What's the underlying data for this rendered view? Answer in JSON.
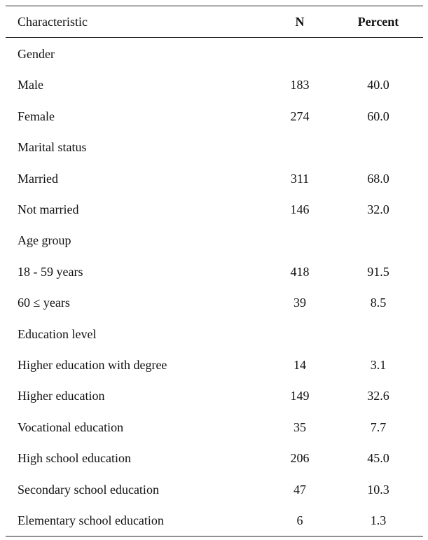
{
  "table": {
    "columns": [
      "Characteristic",
      "N",
      "Percent"
    ],
    "rows": [
      [
        "Gender"
      ],
      [
        "Male",
        "183",
        "40.0"
      ],
      [
        "Female",
        "274",
        "60.0"
      ],
      [
        "Marital status"
      ],
      [
        "Married",
        "311",
        "68.0"
      ],
      [
        "Not married",
        "146",
        "32.0"
      ],
      [
        "Age group"
      ],
      [
        "18 - 59 years",
        "418",
        "91.5"
      ],
      [
        "60 ≤ years",
        "39",
        "8.5"
      ],
      [
        "Education level"
      ],
      [
        "Higher education with degree",
        "14",
        "3.1"
      ],
      [
        "Higher education",
        "149",
        "32.6"
      ],
      [
        "Vocational education",
        "35",
        "7.7"
      ],
      [
        "High school education",
        "206",
        "45.0"
      ],
      [
        "Secondary school education",
        "47",
        "10.3"
      ],
      [
        "Elementary school education",
        "6",
        "1.3"
      ]
    ]
  }
}
